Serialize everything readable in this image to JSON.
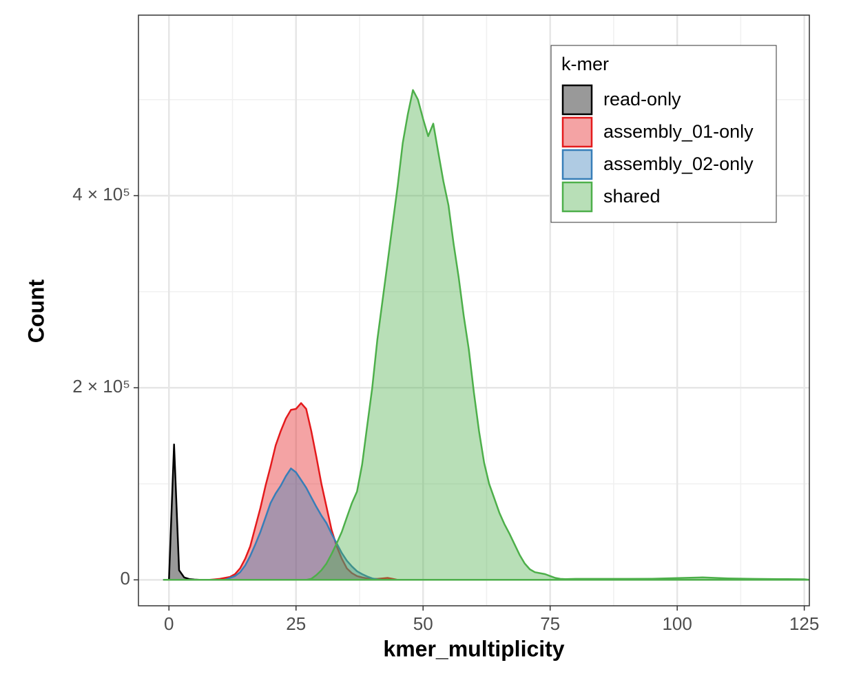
{
  "chart_data": {
    "type": "area",
    "x_label": "kmer_multiplicity",
    "y_label": "Count",
    "xlim": [
      -6,
      126
    ],
    "ylim": [
      -27000,
      588000
    ],
    "xticks": [
      0,
      25,
      50,
      75,
      100,
      125
    ],
    "x_minor_ticks": [
      12.5,
      37.5,
      62.5,
      87.5,
      112.5
    ],
    "yticks": [
      0,
      {
        "value": 200000,
        "label": "2 × 10⁵"
      },
      {
        "value": 400000,
        "label": "4 × 10⁵"
      }
    ],
    "y_minor_ticks": [
      100000,
      300000,
      500000
    ],
    "grid": true,
    "fill_opacity": 0.4,
    "legend": {
      "title": "k-mer",
      "position": "top-right"
    },
    "series": [
      {
        "name": "read-only",
        "color": "#000000",
        "x": [
          0,
          1,
          2,
          3,
          4,
          5,
          6,
          8,
          10
        ],
        "values": [
          0,
          141000,
          10000,
          2500,
          800,
          300,
          100,
          0,
          0
        ]
      },
      {
        "name": "assembly_01-only",
        "color": "#e41a1c",
        "x": [
          -1,
          8,
          9,
          10,
          11,
          12,
          13,
          14,
          15,
          16,
          17,
          18,
          19,
          20,
          21,
          22,
          23,
          24,
          25,
          26,
          27,
          28,
          29,
          30,
          31,
          32,
          33,
          34,
          35,
          36,
          37,
          38,
          39,
          40,
          41,
          42,
          43,
          44,
          45,
          46
        ],
        "values": [
          0,
          0,
          500,
          1000,
          2000,
          3000,
          6000,
          12000,
          22000,
          35000,
          55000,
          75000,
          98000,
          118000,
          140000,
          155000,
          168000,
          177000,
          178000,
          184000,
          178000,
          155000,
          128000,
          100000,
          76000,
          52000,
          35000,
          22000,
          12000,
          7000,
          4000,
          2500,
          1500,
          1000,
          1000,
          1500,
          2000,
          1000,
          0,
          0
        ]
      },
      {
        "name": "assembly_02-only",
        "color": "#377eb8",
        "x": [
          -1,
          11,
          12,
          13,
          14,
          15,
          16,
          17,
          18,
          19,
          20,
          21,
          22,
          23,
          24,
          25,
          26,
          27,
          28,
          29,
          30,
          31,
          32,
          33,
          34,
          35,
          36,
          37,
          38,
          39,
          40,
          41,
          42
        ],
        "values": [
          0,
          0,
          2000,
          4000,
          8000,
          15000,
          25000,
          37000,
          50000,
          65000,
          80000,
          90000,
          98000,
          108000,
          116000,
          112000,
          104000,
          96000,
          86000,
          76000,
          67000,
          59000,
          48000,
          38000,
          28000,
          20000,
          14000,
          9000,
          6000,
          3500,
          1500,
          500,
          0
        ]
      },
      {
        "name": "shared",
        "color": "#4daf4a",
        "x": [
          -1,
          27,
          28,
          29,
          30,
          31,
          32,
          33,
          34,
          35,
          36,
          37,
          38,
          39,
          40,
          41,
          42,
          43,
          44,
          45,
          46,
          47,
          48,
          49,
          50,
          51,
          52,
          53,
          54,
          55,
          56,
          57,
          58,
          59,
          60,
          61,
          62,
          63,
          64,
          65,
          66,
          67,
          68,
          69,
          70,
          71,
          72,
          73,
          74,
          75,
          76,
          77,
          78,
          80,
          85,
          90,
          95,
          100,
          105,
          110,
          115,
          120,
          125,
          126
        ],
        "values": [
          0,
          0,
          1000,
          5000,
          10000,
          17000,
          27000,
          38000,
          50000,
          65000,
          80000,
          92000,
          120000,
          160000,
          200000,
          250000,
          290000,
          330000,
          370000,
          410000,
          455000,
          485000,
          510000,
          500000,
          480000,
          462000,
          475000,
          445000,
          415000,
          390000,
          350000,
          315000,
          275000,
          240000,
          195000,
          155000,
          122000,
          100000,
          85000,
          70000,
          58000,
          48000,
          37000,
          26000,
          17000,
          11000,
          8000,
          7000,
          6000,
          4000,
          2000,
          1000,
          800,
          1000,
          1000,
          1000,
          1200,
          1800,
          2500,
          1500,
          1000,
          800,
          600,
          0
        ]
      }
    ]
  }
}
